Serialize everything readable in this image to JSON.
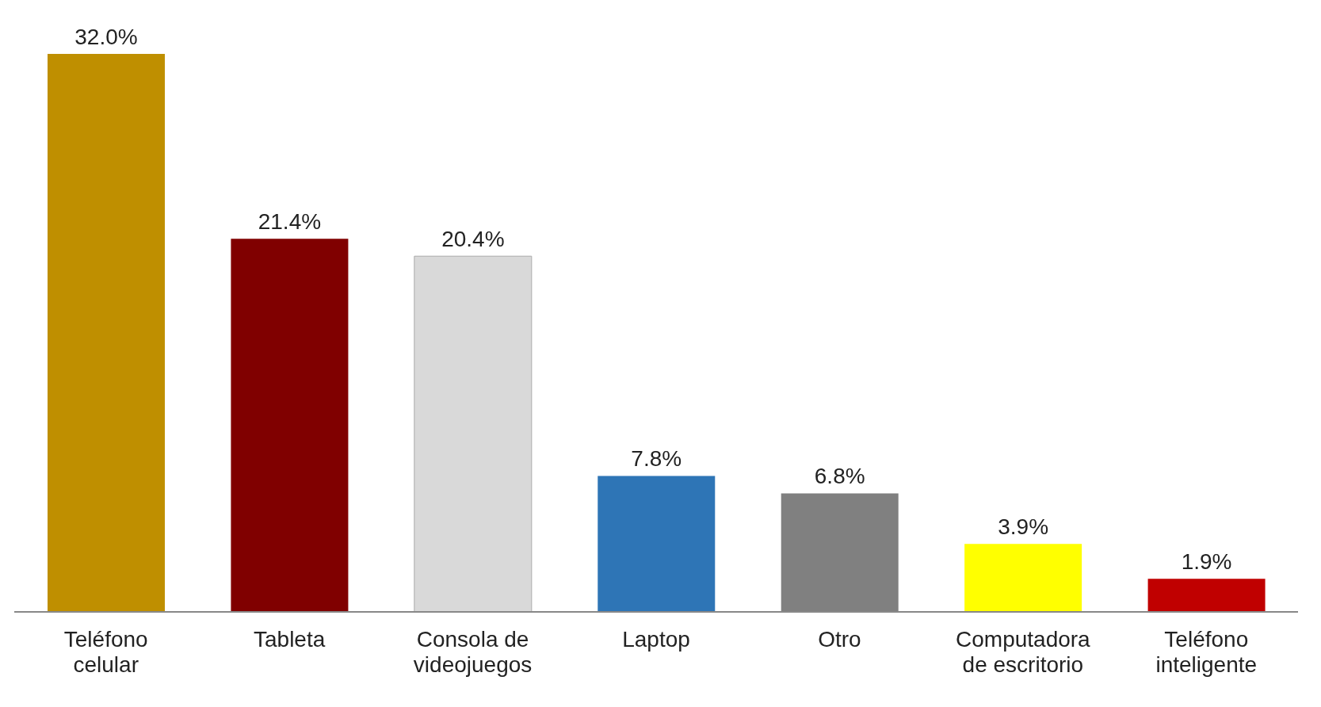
{
  "chart_data": {
    "type": "bar",
    "categories": [
      "Teléfono celular",
      "Tableta",
      "Consola de videojuegos",
      "Laptop",
      "Otro",
      "Computadora de escritorio",
      "Teléfono inteligente"
    ],
    "values": [
      32.0,
      21.4,
      20.4,
      7.8,
      6.8,
      3.9,
      1.9
    ],
    "value_labels": [
      "32.0%",
      "21.4%",
      "20.4%",
      "7.8%",
      "6.8%",
      "3.9%",
      "1.9%"
    ],
    "colors": [
      "#bf8f00",
      "#800000",
      "#d9d9d9",
      "#2e75b6",
      "#808080",
      "#ffff00",
      "#c00000"
    ],
    "tick_labels": "x",
    "grid": false,
    "legend": false
  }
}
